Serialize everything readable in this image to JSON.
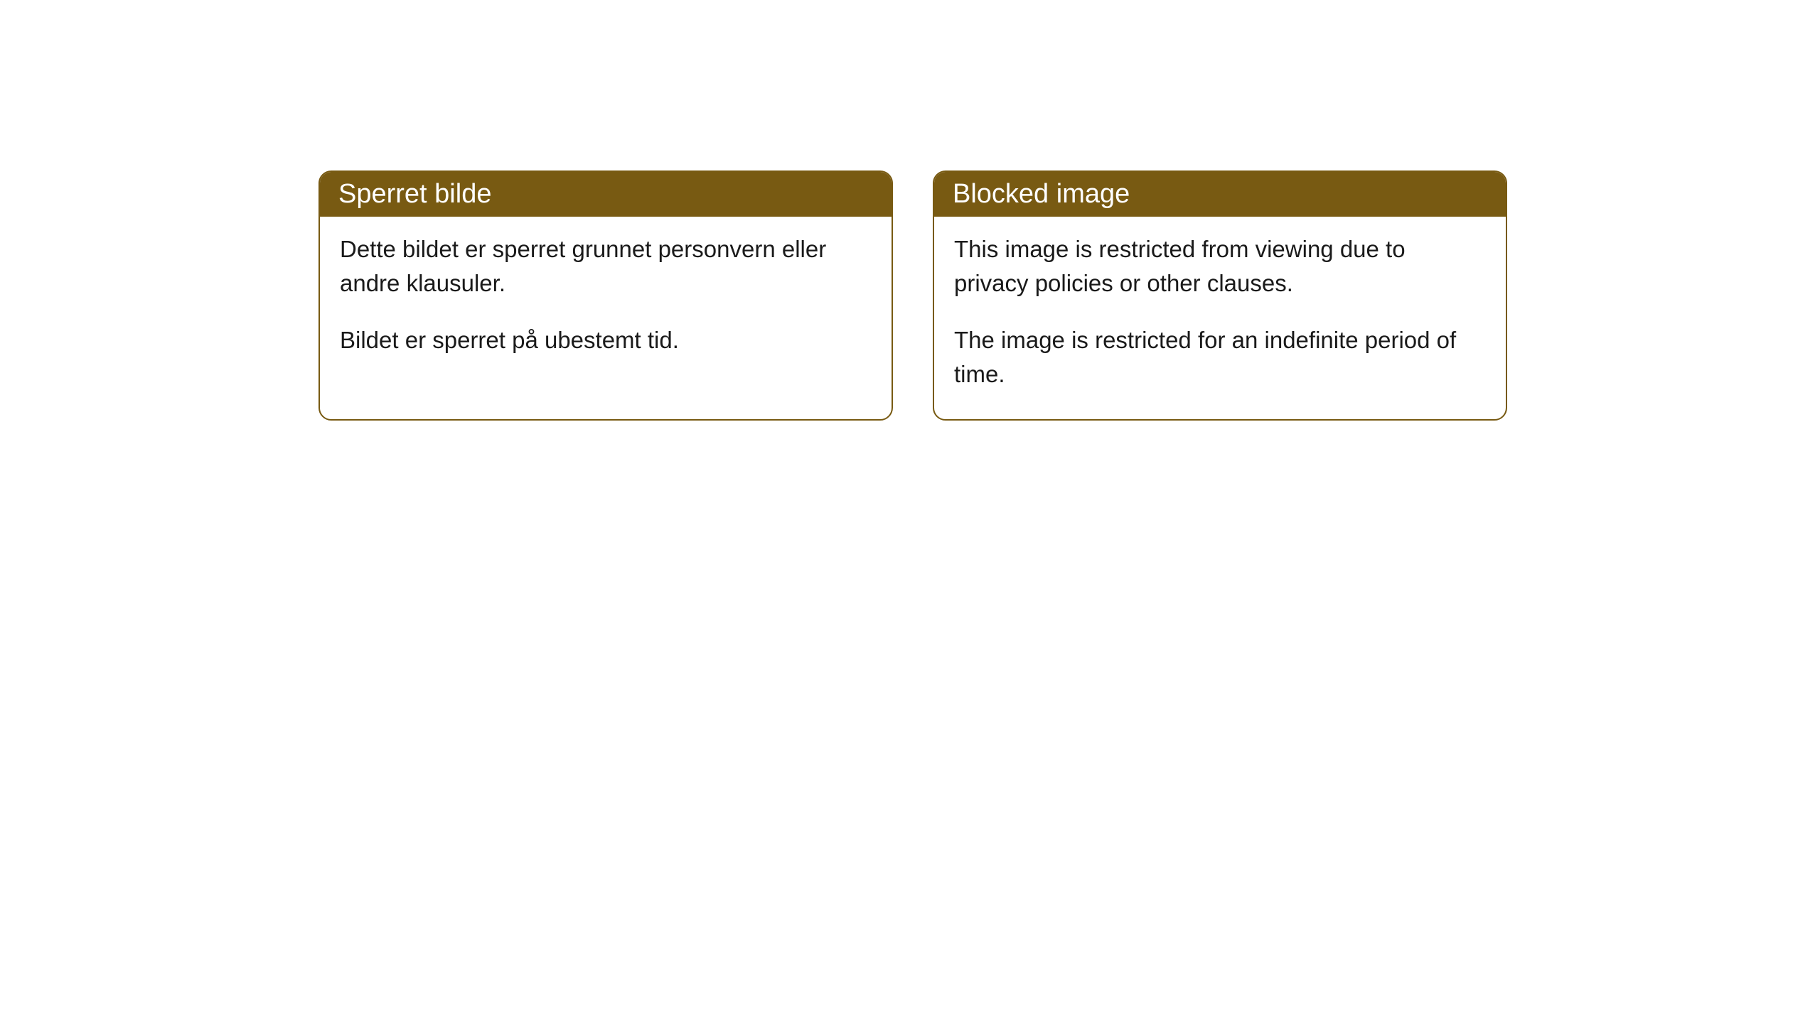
{
  "cards": [
    {
      "title": "Sperret bilde",
      "paragraph1": "Dette bildet er sperret grunnet personvern eller andre klausuler.",
      "paragraph2": "Bildet er sperret på ubestemt tid."
    },
    {
      "title": "Blocked image",
      "paragraph1": "This image is restricted from viewing due to privacy policies or other clauses.",
      "paragraph2": "The image is restricted for an indefinite period of time."
    }
  ],
  "styling": {
    "header_background": "#785a12",
    "header_text_color": "#ffffff",
    "border_color": "#785a12",
    "body_background": "#ffffff",
    "body_text_color": "#1a1a1a",
    "border_radius": 18,
    "header_fontsize": 38,
    "body_fontsize": 33
  }
}
